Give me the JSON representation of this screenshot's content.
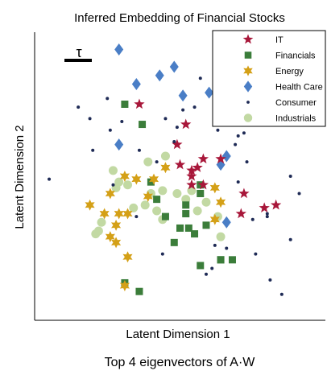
{
  "chart_data": {
    "type": "scatter",
    "title": "Inferred Embedding of Financial Stocks",
    "xlabel": "Latent Dimension 1",
    "ylabel": "Latent Dimension 2",
    "caption": "Top 4 eigenvectors of A·W",
    "scale_bar_label": "τ",
    "xlim": [
      0,
      100
    ],
    "ylim": [
      0,
      100
    ],
    "grid": false,
    "legend": "top-right",
    "series": [
      {
        "name": "IT",
        "marker": "star",
        "color": "#a8173a",
        "points": [
          [
            36,
            75
          ],
          [
            52,
            68
          ],
          [
            49,
            61
          ],
          [
            50,
            54
          ],
          [
            54,
            50
          ],
          [
            54,
            52
          ],
          [
            56,
            53
          ],
          [
            54,
            47
          ],
          [
            58,
            47
          ],
          [
            58,
            56
          ],
          [
            64,
            56
          ],
          [
            72,
            44
          ],
          [
            71,
            37
          ],
          [
            79,
            39
          ],
          [
            83,
            40
          ]
        ]
      },
      {
        "name": "Financials",
        "marker": "square",
        "color": "#3b7d3a",
        "points": [
          [
            31,
            75
          ],
          [
            37,
            68
          ],
          [
            40,
            48
          ],
          [
            42,
            42
          ],
          [
            45,
            36
          ],
          [
            48,
            27
          ],
          [
            50,
            32
          ],
          [
            53,
            32
          ],
          [
            52,
            37
          ],
          [
            52,
            40
          ],
          [
            55,
            30
          ],
          [
            57,
            44
          ],
          [
            57,
            47
          ],
          [
            57,
            19
          ],
          [
            59,
            33
          ],
          [
            64,
            21
          ],
          [
            64,
            21
          ],
          [
            68,
            21
          ],
          [
            31,
            13
          ],
          [
            36,
            10
          ]
        ]
      },
      {
        "name": "Energy",
        "marker": "star6",
        "color": "#d4a017",
        "points": [
          [
            19,
            40
          ],
          [
            24,
            37
          ],
          [
            26,
            44
          ],
          [
            29,
            37
          ],
          [
            26,
            29
          ],
          [
            28,
            33
          ],
          [
            28,
            27
          ],
          [
            31,
            50
          ],
          [
            35,
            49
          ],
          [
            32,
            37
          ],
          [
            32,
            22
          ],
          [
            31,
            12
          ],
          [
            41,
            49
          ],
          [
            39,
            43
          ],
          [
            45,
            53
          ],
          [
            62,
            46
          ],
          [
            64,
            41
          ],
          [
            62,
            35
          ]
        ]
      },
      {
        "name": "Health Care",
        "marker": "diamond",
        "color": "#4a7ec6",
        "points": [
          [
            29,
            94
          ],
          [
            35,
            82
          ],
          [
            43,
            85
          ],
          [
            48,
            88
          ],
          [
            51,
            78
          ],
          [
            60,
            79
          ],
          [
            75,
            80
          ],
          [
            64,
            54
          ],
          [
            66,
            57
          ],
          [
            29,
            61
          ],
          [
            66,
            34
          ]
        ]
      },
      {
        "name": "Consumer",
        "marker": "dot",
        "color": "#1e2a55",
        "points": [
          [
            5,
            49
          ],
          [
            15,
            74
          ],
          [
            19,
            70
          ],
          [
            20,
            59
          ],
          [
            27,
            47
          ],
          [
            26,
            66
          ],
          [
            25,
            77
          ],
          [
            30,
            69
          ],
          [
            36,
            59
          ],
          [
            42,
            55
          ],
          [
            45,
            70
          ],
          [
            48,
            62
          ],
          [
            49,
            67
          ],
          [
            51,
            73
          ],
          [
            55,
            74
          ],
          [
            57,
            84
          ],
          [
            62,
            81
          ],
          [
            63,
            66
          ],
          [
            69,
            61
          ],
          [
            70,
            64
          ],
          [
            73,
            55
          ],
          [
            75,
            35
          ],
          [
            80,
            36
          ],
          [
            76,
            23
          ],
          [
            81,
            14
          ],
          [
            85,
            9
          ],
          [
            88,
            50
          ],
          [
            91,
            44
          ],
          [
            88,
            28
          ],
          [
            35,
            36
          ],
          [
            44,
            23
          ],
          [
            59,
            16
          ],
          [
            61,
            18
          ],
          [
            62,
            26
          ],
          [
            66,
            25
          ],
          [
            70,
            86
          ],
          [
            70,
            48
          ],
          [
            72,
            65
          ],
          [
            80,
            37
          ],
          [
            71,
            70
          ]
        ]
      },
      {
        "name": "Industrials",
        "marker": "circle",
        "color": "#c2d9a3",
        "points": [
          [
            27,
            52
          ],
          [
            39,
            55
          ],
          [
            45,
            57
          ],
          [
            40,
            44
          ],
          [
            32,
            47
          ],
          [
            28,
            46
          ],
          [
            29,
            48
          ],
          [
            23,
            34
          ],
          [
            22,
            31
          ],
          [
            21,
            30
          ],
          [
            34,
            39
          ],
          [
            38,
            40
          ],
          [
            44,
            45
          ],
          [
            49,
            44
          ],
          [
            52,
            42
          ],
          [
            54,
            45
          ],
          [
            42,
            38
          ],
          [
            44,
            35
          ],
          [
            56,
            38
          ],
          [
            59,
            41
          ],
          [
            64,
            29
          ],
          [
            63,
            36
          ]
        ]
      }
    ]
  }
}
